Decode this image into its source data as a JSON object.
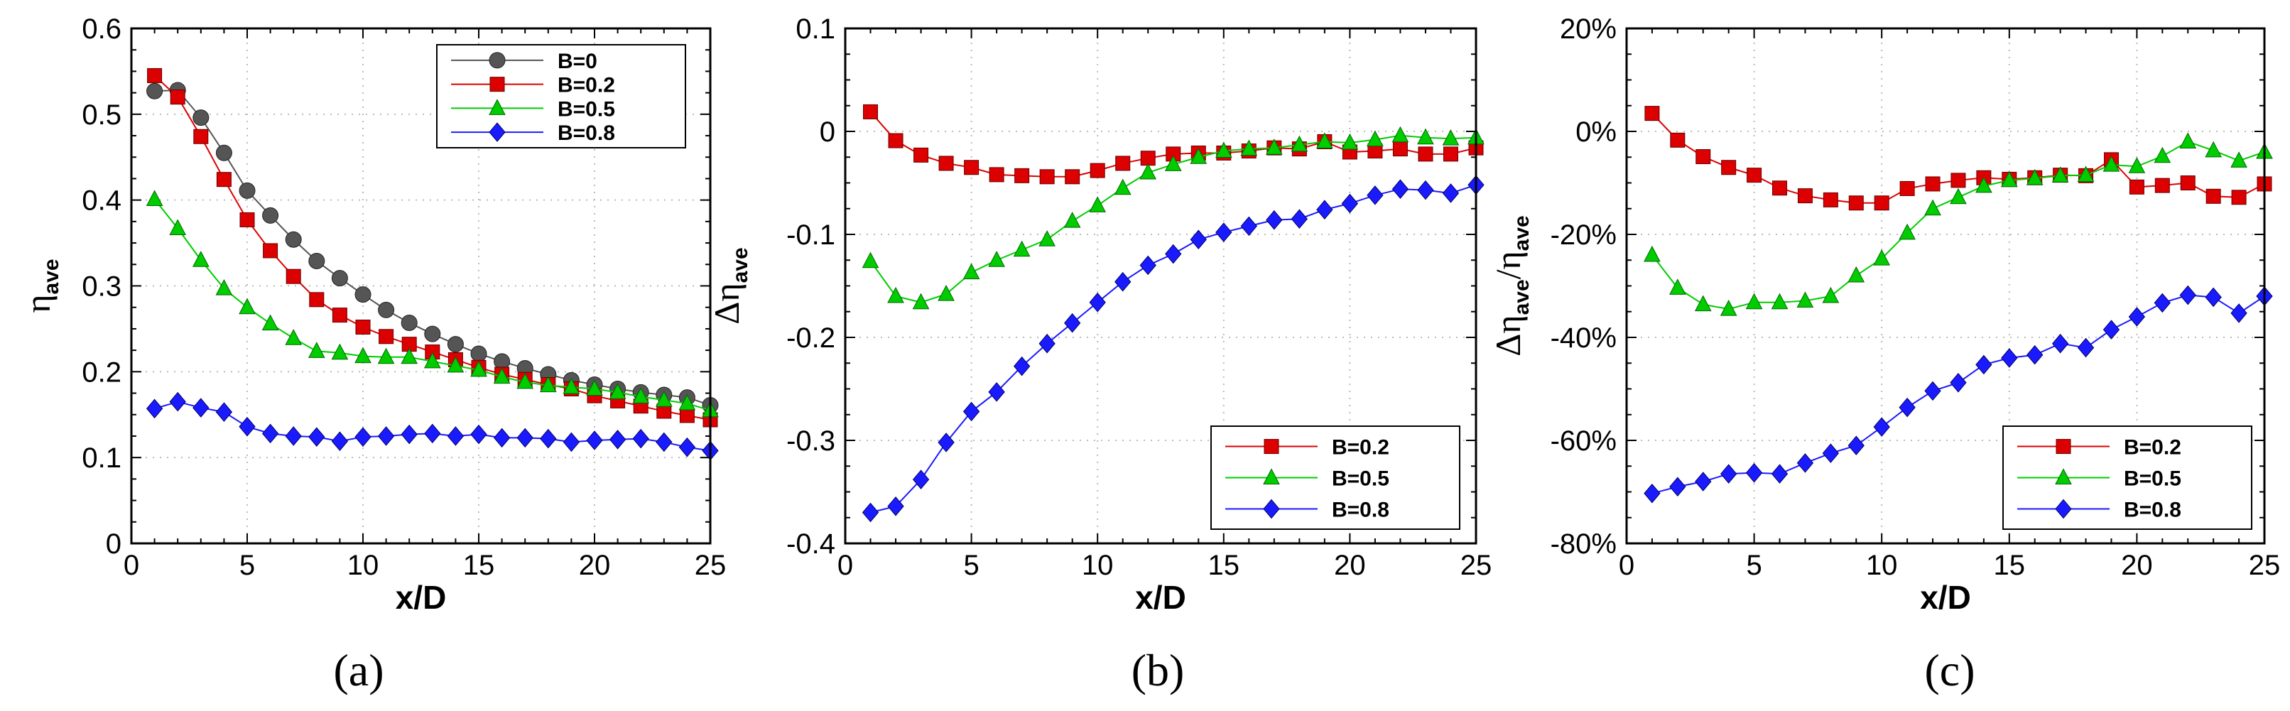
{
  "chart_data": [
    {
      "type": "line",
      "caption": "(a)",
      "xlabel": "x/D",
      "ylabel": {
        "main": "η",
        "sub": "ave"
      },
      "xlim": [
        0,
        25
      ],
      "ylim": [
        0,
        0.6
      ],
      "xticks": [
        0,
        5,
        10,
        15,
        20,
        25
      ],
      "yticks": [
        0,
        0.1,
        0.2,
        0.3,
        0.4,
        0.5,
        0.6
      ],
      "ytick_labels": [
        "0",
        "0.1",
        "0.2",
        "0.3",
        "0.4",
        "0.5",
        "0.6"
      ],
      "legend_position": "top-right",
      "series": [
        {
          "name": "B=0",
          "color": "#555555",
          "marker": "circle",
          "x": [
            1,
            2,
            3,
            4,
            5,
            6,
            7,
            8,
            9,
            10,
            11,
            12,
            13,
            14,
            15,
            16,
            17,
            18,
            19,
            20,
            21,
            22,
            23,
            24,
            25
          ],
          "values": [
            0.527,
            0.528,
            0.496,
            0.455,
            0.411,
            0.382,
            0.354,
            0.329,
            0.309,
            0.29,
            0.272,
            0.257,
            0.244,
            0.232,
            0.221,
            0.212,
            0.204,
            0.197,
            0.19,
            0.185,
            0.18,
            0.176,
            0.173,
            0.17,
            0.161
          ]
        },
        {
          "name": "B=0.2",
          "color": "#dd0000",
          "marker": "square",
          "x": [
            1,
            2,
            3,
            4,
            5,
            6,
            7,
            8,
            9,
            10,
            11,
            12,
            13,
            14,
            15,
            16,
            17,
            18,
            19,
            20,
            21,
            22,
            23,
            24,
            25
          ],
          "values": [
            0.545,
            0.52,
            0.474,
            0.424,
            0.377,
            0.341,
            0.311,
            0.284,
            0.266,
            0.252,
            0.241,
            0.232,
            0.223,
            0.214,
            0.205,
            0.197,
            0.191,
            0.185,
            0.18,
            0.172,
            0.166,
            0.16,
            0.154,
            0.149,
            0.144
          ]
        },
        {
          "name": "B=0.5",
          "color": "#00cc00",
          "marker": "triangle",
          "x": [
            1,
            2,
            3,
            4,
            5,
            6,
            7,
            8,
            9,
            10,
            11,
            12,
            13,
            14,
            15,
            16,
            17,
            18,
            19,
            20,
            21,
            22,
            23,
            24,
            25
          ],
          "values": [
            0.401,
            0.367,
            0.33,
            0.297,
            0.275,
            0.256,
            0.239,
            0.224,
            0.222,
            0.218,
            0.217,
            0.217,
            0.212,
            0.207,
            0.202,
            0.194,
            0.188,
            0.184,
            0.182,
            0.18,
            0.176,
            0.171,
            0.167,
            0.163,
            0.155
          ]
        },
        {
          "name": "B=0.8",
          "color": "#1a1aff",
          "marker": "diamond",
          "x": [
            1,
            2,
            3,
            4,
            5,
            6,
            7,
            8,
            9,
            10,
            11,
            12,
            13,
            14,
            15,
            16,
            17,
            18,
            19,
            20,
            21,
            22,
            23,
            24,
            25
          ],
          "values": [
            0.157,
            0.165,
            0.158,
            0.153,
            0.136,
            0.128,
            0.125,
            0.124,
            0.119,
            0.124,
            0.125,
            0.127,
            0.128,
            0.125,
            0.127,
            0.123,
            0.123,
            0.122,
            0.118,
            0.12,
            0.121,
            0.122,
            0.118,
            0.112,
            0.108
          ]
        }
      ]
    },
    {
      "type": "line",
      "caption": "(b)",
      "xlabel": "x/D",
      "ylabel": {
        "main": "Δη",
        "sub": "ave"
      },
      "xlim": [
        0,
        25
      ],
      "ylim": [
        -0.4,
        0.1
      ],
      "xticks": [
        0,
        5,
        10,
        15,
        20,
        25
      ],
      "yticks": [
        -0.4,
        -0.3,
        -0.2,
        -0.1,
        0,
        0.1
      ],
      "ytick_labels": [
        "-0.4",
        "-0.3",
        "-0.2",
        "-0.1",
        "0",
        "0.1"
      ],
      "legend_position": "bottom-right",
      "series": [
        {
          "name": "B=0.2",
          "color": "#dd0000",
          "marker": "square",
          "x": [
            1,
            2,
            3,
            4,
            5,
            6,
            7,
            8,
            9,
            10,
            11,
            12,
            13,
            14,
            15,
            16,
            17,
            18,
            19,
            20,
            21,
            22,
            23,
            24,
            25
          ],
          "values": [
            0.019,
            -0.009,
            -0.023,
            -0.031,
            -0.035,
            -0.042,
            -0.043,
            -0.044,
            -0.044,
            -0.038,
            -0.031,
            -0.026,
            -0.022,
            -0.021,
            -0.021,
            -0.019,
            -0.016,
            -0.017,
            -0.01,
            -0.02,
            -0.019,
            -0.017,
            -0.022,
            -0.022,
            -0.016
          ]
        },
        {
          "name": "B=0.5",
          "color": "#00cc00",
          "marker": "triangle",
          "x": [
            1,
            2,
            3,
            4,
            5,
            6,
            7,
            8,
            9,
            10,
            11,
            12,
            13,
            14,
            15,
            16,
            17,
            18,
            19,
            20,
            21,
            22,
            23,
            24,
            25
          ],
          "values": [
            -0.126,
            -0.16,
            -0.166,
            -0.158,
            -0.137,
            -0.125,
            -0.115,
            -0.105,
            -0.087,
            -0.072,
            -0.055,
            -0.04,
            -0.032,
            -0.025,
            -0.019,
            -0.017,
            -0.016,
            -0.013,
            -0.01,
            -0.011,
            -0.008,
            -0.004,
            -0.006,
            -0.007,
            -0.006
          ]
        },
        {
          "name": "B=0.8",
          "color": "#1a1aff",
          "marker": "diamond",
          "x": [
            1,
            2,
            3,
            4,
            5,
            6,
            7,
            8,
            9,
            10,
            11,
            12,
            13,
            14,
            15,
            16,
            17,
            18,
            19,
            20,
            21,
            22,
            23,
            24,
            25
          ],
          "values": [
            -0.37,
            -0.364,
            -0.338,
            -0.302,
            -0.272,
            -0.253,
            -0.228,
            -0.206,
            -0.186,
            -0.166,
            -0.146,
            -0.13,
            -0.119,
            -0.105,
            -0.098,
            -0.092,
            -0.086,
            -0.085,
            -0.076,
            -0.07,
            -0.062,
            -0.056,
            -0.057,
            -0.06,
            -0.052
          ]
        }
      ]
    },
    {
      "type": "line",
      "caption": "(c)",
      "xlabel": "x/D",
      "ylabel": {
        "main": "Δη",
        "sub": "ave",
        "main2": "/η",
        "sub2": "ave"
      },
      "xlim": [
        0,
        25
      ],
      "ylim": [
        -80,
        20
      ],
      "xticks": [
        0,
        5,
        10,
        15,
        20,
        25
      ],
      "yticks": [
        -80,
        -60,
        -40,
        -20,
        0,
        20
      ],
      "ytick_labels": [
        "-80%",
        "-60%",
        "-40%",
        "-20%",
        "0%",
        "20%"
      ],
      "legend_position": "bottom-right",
      "series": [
        {
          "name": "B=0.2",
          "color": "#dd0000",
          "marker": "square",
          "x": [
            1,
            2,
            3,
            4,
            5,
            6,
            7,
            8,
            9,
            10,
            11,
            12,
            13,
            14,
            15,
            16,
            17,
            18,
            19,
            20,
            21,
            22,
            23,
            24,
            25
          ],
          "values": [
            3.5,
            -1.7,
            -4.9,
            -7.0,
            -8.5,
            -11.0,
            -12.5,
            -13.3,
            -13.9,
            -13.9,
            -11.1,
            -10.2,
            -9.5,
            -9.0,
            -9.3,
            -9.0,
            -8.5,
            -8.6,
            -5.5,
            -10.8,
            -10.5,
            -10.0,
            -12.6,
            -12.8,
            -10.2
          ]
        },
        {
          "name": "B=0.5",
          "color": "#00cc00",
          "marker": "triangle",
          "x": [
            1,
            2,
            3,
            4,
            5,
            6,
            7,
            8,
            9,
            10,
            11,
            12,
            13,
            14,
            15,
            16,
            17,
            18,
            19,
            20,
            21,
            22,
            23,
            24,
            25
          ],
          "values": [
            -24.0,
            -30.4,
            -33.6,
            -34.5,
            -33.2,
            -33.2,
            -32.9,
            -32.0,
            -28.0,
            -24.7,
            -19.7,
            -15.0,
            -12.8,
            -10.6,
            -9.5,
            -9.1,
            -8.6,
            -8.5,
            -6.5,
            -6.8,
            -4.8,
            -2.0,
            -3.7,
            -5.7,
            -4.0
          ]
        },
        {
          "name": "B=0.8",
          "color": "#1a1aff",
          "marker": "diamond",
          "x": [
            1,
            2,
            3,
            4,
            5,
            6,
            7,
            8,
            9,
            10,
            11,
            12,
            13,
            14,
            15,
            16,
            17,
            18,
            19,
            20,
            21,
            22,
            23,
            24,
            25
          ],
          "values": [
            -70.3,
            -69.0,
            -68.0,
            -66.5,
            -66.3,
            -66.5,
            -64.4,
            -62.5,
            -61.0,
            -57.4,
            -53.6,
            -50.4,
            -48.8,
            -45.3,
            -44.0,
            -43.4,
            -41.2,
            -42.0,
            -38.5,
            -36.0,
            -33.3,
            -31.8,
            -32.2,
            -35.3,
            -32.0
          ]
        }
      ]
    }
  ]
}
